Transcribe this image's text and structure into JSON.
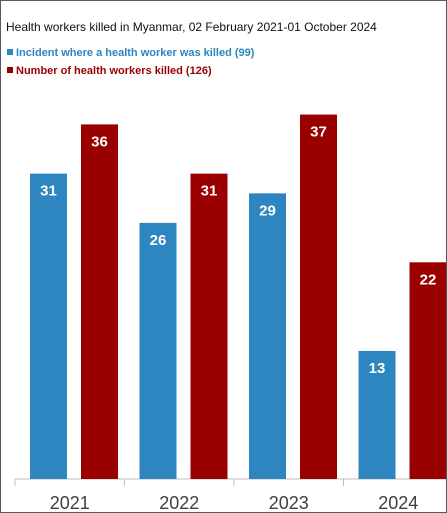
{
  "chart_data": {
    "type": "bar",
    "title": "Health workers killed  in Myanmar,  02 February 2021-01 October 2024",
    "categories": [
      "2021",
      "2022",
      "2023",
      "2024"
    ],
    "series": [
      {
        "name": "Incident where a health worker was killed (99)",
        "values": [
          31,
          26,
          29,
          13
        ],
        "color": "#2d86c0"
      },
      {
        "name": "Number of health workers killed (126)",
        "values": [
          36,
          31,
          37,
          22
        ],
        "color": "#9b0000"
      }
    ],
    "ylim": [
      0,
      40
    ],
    "grid": false,
    "legend_position": "top-left",
    "data_labels": true
  }
}
